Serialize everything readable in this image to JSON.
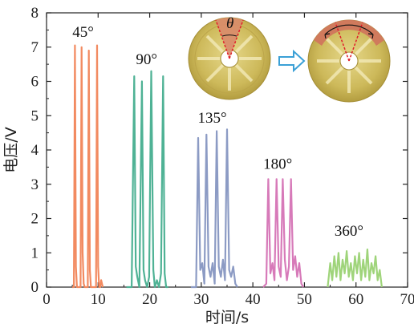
{
  "chart_data": {
    "type": "line",
    "title": "",
    "xlabel": "时间/s",
    "ylabel": "电压/V",
    "xlim": [
      0,
      70
    ],
    "ylim": [
      0,
      8
    ],
    "xticks": [
      0,
      10,
      20,
      30,
      40,
      50,
      60,
      70
    ],
    "yticks": [
      0,
      1,
      2,
      3,
      4,
      5,
      6,
      7,
      8
    ],
    "grid": false,
    "legend": "none",
    "series": [
      {
        "name": "45°",
        "color": "#f28a60",
        "x": [
          5.0,
          5.3,
          5.5,
          5.7,
          5.9,
          6.6,
          6.8,
          7.0,
          7.2,
          7.4,
          7.6,
          8.0,
          8.2,
          8.4,
          8.6,
          8.8,
          9.6,
          9.8,
          10.0,
          10.2,
          10.4,
          10.6,
          10.9
        ],
        "y": [
          0.0,
          0.0,
          7.05,
          0.6,
          0.0,
          0.0,
          7.0,
          1.0,
          0.1,
          0.0,
          0.0,
          0.0,
          6.9,
          0.5,
          0.0,
          0.0,
          0.0,
          7.05,
          0.6,
          0.0,
          0.0,
          0.2,
          0.0
        ]
      },
      {
        "name": "90°",
        "color": "#4fb295",
        "x": [
          15.5,
          16.5,
          17.0,
          17.3,
          17.6,
          18.0,
          18.5,
          18.8,
          19.1,
          19.5,
          19.9,
          20.3,
          20.7,
          21.0,
          21.4,
          21.8,
          22.2,
          22.6,
          22.9,
          23.2,
          23.6
        ],
        "y": [
          0.0,
          0.0,
          6.15,
          0.6,
          0.3,
          0.0,
          6.0,
          0.5,
          0.2,
          0.0,
          0.3,
          6.3,
          0.5,
          0.0,
          0.2,
          0.0,
          0.4,
          6.15,
          0.4,
          0.0,
          0.0
        ]
      },
      {
        "name": "135°",
        "color": "#8c9bc4",
        "x": [
          28.0,
          29.0,
          29.4,
          29.8,
          30.2,
          30.6,
          31.0,
          31.4,
          31.8,
          32.2,
          32.6,
          33.0,
          33.4,
          33.8,
          34.2,
          34.6,
          35.0,
          35.4,
          35.8,
          36.2,
          36.6,
          37.0
        ],
        "y": [
          0.0,
          0.0,
          4.35,
          0.5,
          0.7,
          0.1,
          4.45,
          0.6,
          0.3,
          0.7,
          0.1,
          4.55,
          0.6,
          0.3,
          0.8,
          0.2,
          4.6,
          0.5,
          0.3,
          0.6,
          0.1,
          0.0
        ]
      },
      {
        "name": "180°",
        "color": "#d77ab9",
        "x": [
          42.0,
          42.6,
          43.0,
          43.4,
          43.8,
          44.2,
          44.6,
          45.0,
          45.4,
          45.8,
          46.2,
          46.6,
          47.0,
          47.4,
          47.8,
          48.2,
          48.6,
          49.0,
          49.4,
          49.8
        ],
        "y": [
          0.0,
          0.1,
          3.15,
          0.4,
          0.7,
          0.2,
          3.15,
          0.6,
          0.3,
          3.15,
          0.8,
          0.2,
          0.6,
          3.15,
          0.5,
          0.9,
          0.3,
          0.7,
          0.1,
          0.0
        ]
      },
      {
        "name": "360°",
        "color": "#9fd47a",
        "x": [
          54.5,
          55.0,
          55.4,
          55.8,
          56.2,
          56.6,
          57.0,
          57.4,
          57.8,
          58.2,
          58.6,
          59.0,
          59.4,
          59.8,
          60.2,
          60.6,
          61.0,
          61.4,
          61.8,
          62.2,
          62.6,
          63.0,
          63.4,
          63.8,
          64.2,
          64.6,
          65.0
        ],
        "y": [
          0.0,
          0.7,
          0.2,
          0.9,
          0.3,
          1.0,
          0.2,
          0.8,
          0.4,
          1.05,
          0.3,
          0.7,
          0.2,
          0.9,
          0.4,
          1.0,
          0.2,
          0.8,
          0.3,
          1.1,
          0.2,
          0.7,
          0.4,
          0.9,
          0.2,
          0.5,
          0.0
        ]
      }
    ],
    "annotations": [
      "45°",
      "90°",
      "135°",
      "180°",
      "360°",
      "θ"
    ]
  }
}
